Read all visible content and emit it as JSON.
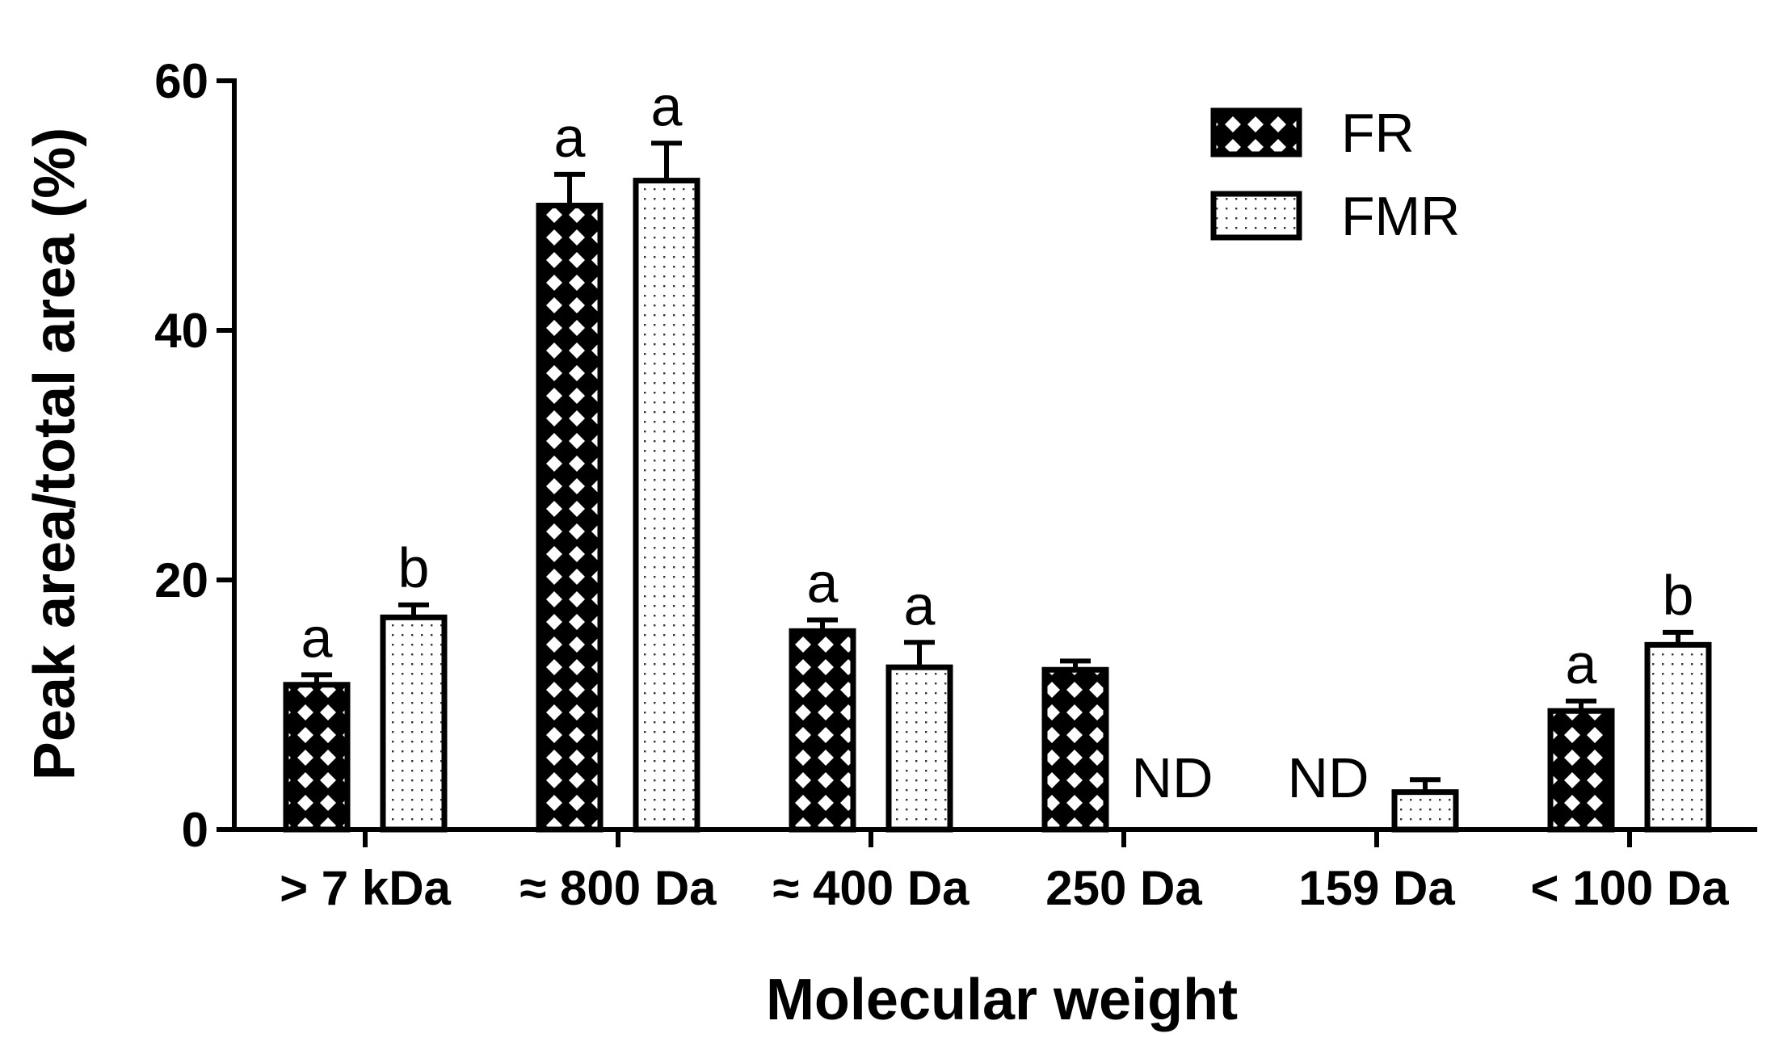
{
  "chart_data": {
    "type": "bar",
    "xlabel": "Molecular weight",
    "ylabel": "Peak area/total area (%)",
    "ylim": [
      0,
      60
    ],
    "yticks": [
      "0",
      "20",
      "40",
      "60"
    ],
    "categories": [
      "> 7 kDa",
      "≈ 800 Da",
      "≈ 400 Da",
      "250 Da",
      "159 Da",
      "< 100 Da"
    ],
    "series": [
      {
        "name": "FR",
        "pattern": "crosshatch",
        "values": [
          11.6,
          50.0,
          15.9,
          12.8,
          null,
          9.5
        ],
        "errors": [
          0.8,
          2.5,
          0.9,
          0.7,
          null,
          0.8
        ],
        "annotations": [
          "a",
          "a",
          "a",
          "",
          "ND",
          "a"
        ]
      },
      {
        "name": "FMR",
        "pattern": "dotted",
        "values": [
          17.0,
          52.0,
          13.0,
          null,
          3.0,
          14.8
        ],
        "errors": [
          1.0,
          3.0,
          2.0,
          null,
          1.0,
          1.0
        ],
        "annotations": [
          "b",
          "a",
          "a",
          "ND",
          "",
          "b"
        ]
      }
    ],
    "legend_position": "top-right",
    "colors": {
      "ink": "#000000",
      "background": "#ffffff"
    }
  }
}
